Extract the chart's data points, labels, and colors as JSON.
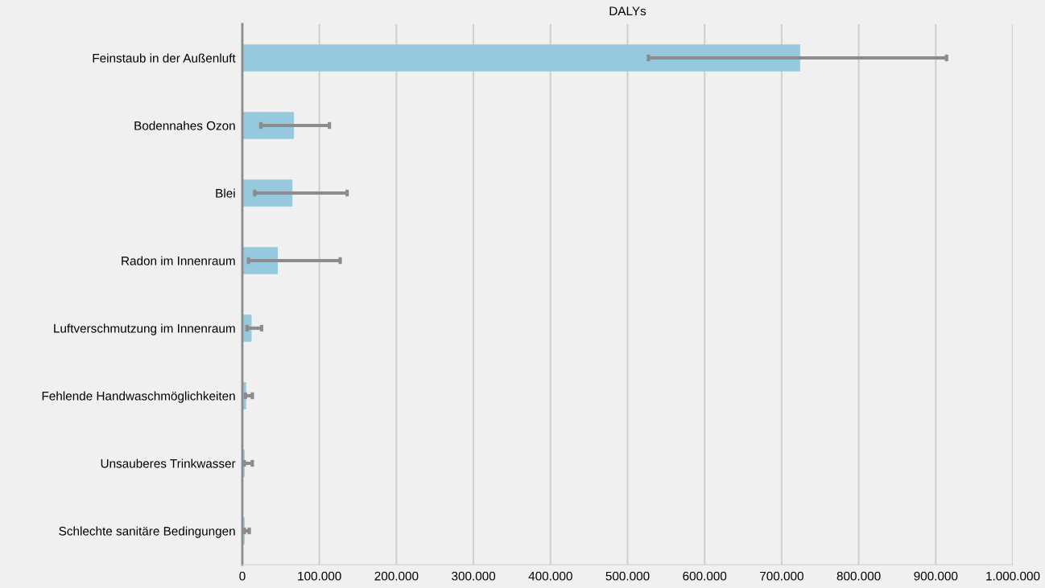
{
  "chart_data": {
    "type": "bar",
    "orientation": "horizontal",
    "title": "DALYs",
    "categories": [
      "Feinstaub in der Außenluft",
      "Bodennahes Ozon",
      "Blei",
      "Radon im Innenraum",
      "Luftverschmutzung im Innenraum",
      "Fehlende Handwaschmöglichkeiten",
      "Unsauberes Trinkwasser",
      "Schlechte sanitäre Bedingungen"
    ],
    "values": [
      724000,
      67000,
      65000,
      46000,
      12000,
      5000,
      3000,
      3000
    ],
    "errors": [
      [
        527000,
        914000
      ],
      [
        24000,
        113000
      ],
      [
        16000,
        136000
      ],
      [
        8000,
        127000
      ],
      [
        6000,
        25000
      ],
      [
        4000,
        13000
      ],
      [
        2500,
        13000
      ],
      [
        2500,
        9000
      ]
    ],
    "color": "#96c8de",
    "xlim": [
      0,
      1000000
    ],
    "xticks": [
      0,
      {
        "value": 100000,
        "label": "100.000"
      },
      {
        "value": 200000,
        "label": "200.000"
      },
      {
        "value": 300000,
        "label": "300.000"
      },
      {
        "value": 400000,
        "label": "400.000"
      },
      {
        "value": 500000,
        "label": "500.000"
      },
      {
        "value": 600000,
        "label": "600.000"
      },
      {
        "value": 700000,
        "label": "700.000"
      },
      {
        "value": 800000,
        "label": "800.000"
      },
      {
        "value": 900000,
        "label": "900.000"
      },
      {
        "value": 1000000,
        "label": "1.000.000"
      }
    ],
    "grid": "x",
    "legend": false
  }
}
